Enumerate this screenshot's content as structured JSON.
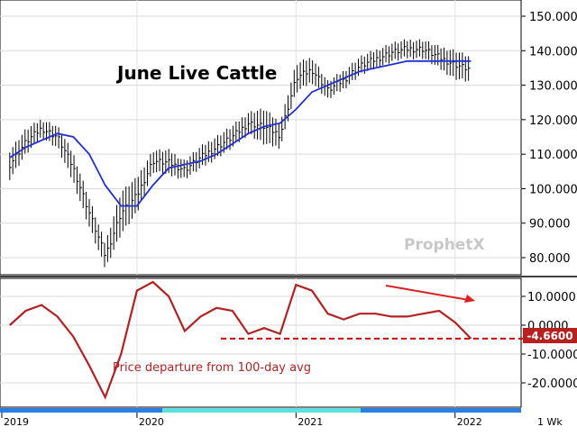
{
  "chart_data": [
    {
      "type": "ohlc",
      "title": "June Live Cattle",
      "ylim": [
        75,
        155
      ],
      "y_ticks": [
        "80.000",
        "90.000",
        "100.000",
        "110.000",
        "120.000",
        "130.000",
        "140.000",
        "150.000"
      ],
      "series": [
        {
          "kind": "weekly price bars (high-low)",
          "color": "#000000",
          "x": [
            2019.2,
            2019.3,
            2019.4,
            2019.5,
            2019.6,
            2019.7,
            2019.8,
            2019.9,
            2020.0,
            2020.1,
            2020.2,
            2020.3,
            2020.4,
            2020.5,
            2020.6,
            2020.7,
            2020.8,
            2020.9,
            2021.0,
            2021.1,
            2021.2,
            2021.3,
            2021.4,
            2021.5,
            2021.6,
            2021.7,
            2021.8,
            2021.9,
            2022.0,
            2022.1
          ],
          "high": [
            111,
            117,
            120,
            118,
            110,
            97,
            84,
            99,
            103,
            111,
            111,
            108,
            112,
            115,
            118,
            122,
            123,
            119,
            136,
            138,
            131,
            134,
            138,
            140,
            142,
            143,
            143,
            141,
            140,
            138
          ],
          "low": [
            103,
            110,
            115,
            112,
            102,
            89,
            77,
            87,
            93,
            105,
            104,
            103,
            106,
            109,
            112,
            116,
            113,
            112,
            128,
            131,
            126,
            129,
            133,
            135,
            137,
            138,
            138,
            135,
            132,
            131
          ]
        },
        {
          "kind": "100-day moving average",
          "color": "#1f2fd6",
          "x": [
            2019.2,
            2019.3,
            2019.4,
            2019.5,
            2019.6,
            2019.7,
            2019.8,
            2019.9,
            2020.0,
            2020.1,
            2020.2,
            2020.3,
            2020.4,
            2020.5,
            2020.6,
            2020.7,
            2020.8,
            2020.9,
            2021.0,
            2021.1,
            2021.2,
            2021.3,
            2021.4,
            2021.5,
            2021.6,
            2021.7,
            2021.8,
            2021.9,
            2022.0,
            2022.1
          ],
          "values": [
            109,
            112,
            114,
            116,
            115,
            110,
            101,
            95,
            95,
            101,
            106,
            107,
            108,
            110,
            113,
            116,
            118,
            119,
            123,
            128,
            130,
            132,
            134,
            135,
            136,
            137,
            137,
            137,
            137,
            137
          ]
        }
      ],
      "watermark": "ProphetX"
    },
    {
      "type": "line",
      "ylim": [
        -28,
        18
      ],
      "y_ticks": [
        "10.0000",
        "0.0000",
        "-10.0000",
        "-20.0000"
      ],
      "series": [
        {
          "x": [
            2019.2,
            2019.3,
            2019.4,
            2019.5,
            2019.6,
            2019.7,
            2019.8,
            2019.9,
            2020.0,
            2020.1,
            2020.2,
            2020.3,
            2020.4,
            2020.5,
            2020.6,
            2020.7,
            2020.8,
            2020.9,
            2021.0,
            2021.1,
            2021.2,
            2021.3,
            2021.4,
            2021.5,
            2021.6,
            2021.7,
            2021.8,
            2021.9,
            2022.0,
            2022.1
          ],
          "values": [
            0,
            5,
            7,
            3,
            -4,
            -14,
            -25,
            -10,
            12,
            15,
            10,
            -2,
            3,
            6,
            5,
            -3,
            -1,
            -3,
            14,
            12,
            4,
            2,
            4,
            4,
            3,
            3,
            4,
            5,
            1,
            -4.66
          ],
          "color": "#b22222"
        }
      ],
      "current_value": "-4.6600",
      "annotation": "Price departure from 100-day avg"
    }
  ],
  "time_axis": {
    "labels": [
      "2019",
      "2020",
      "2021",
      "2022"
    ],
    "period": "1 Wk"
  }
}
